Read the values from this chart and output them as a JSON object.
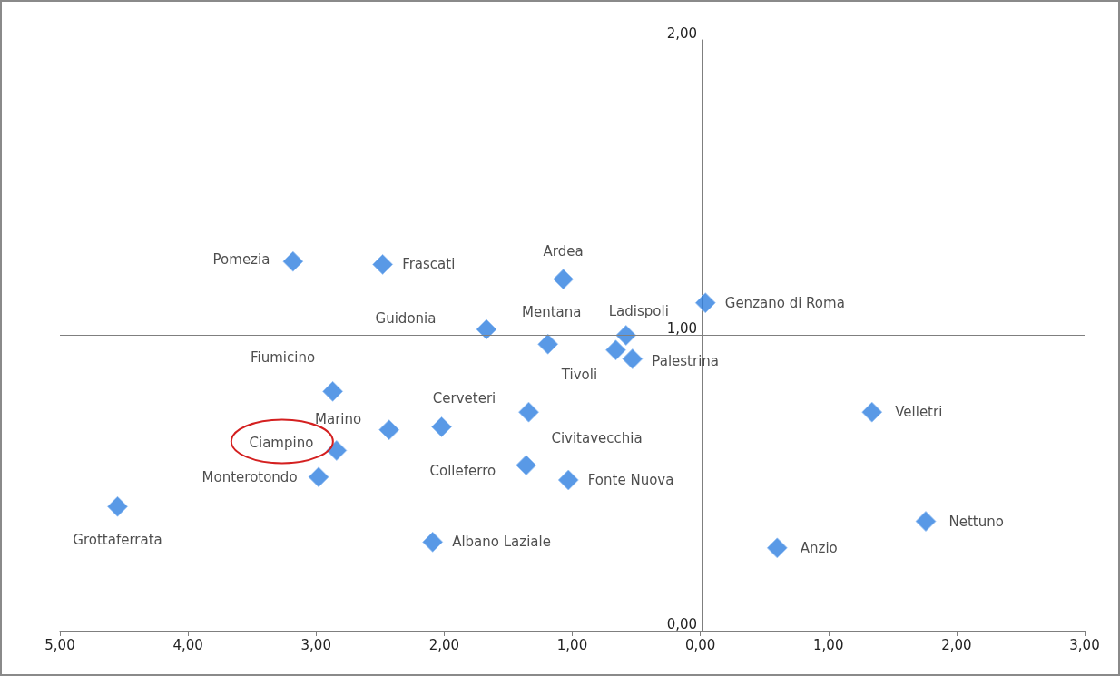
{
  "chart_data": {
    "type": "scatter",
    "marker": "diamond",
    "legend": false,
    "grid": false,
    "xlim": [
      -5,
      3
    ],
    "xticks": [
      {
        "value": -5,
        "label": "5,00"
      },
      {
        "value": -4,
        "label": "4,00"
      },
      {
        "value": -3,
        "label": "3,00"
      },
      {
        "value": -2,
        "label": "2,00"
      },
      {
        "value": -1,
        "label": "1,00"
      },
      {
        "value": 0,
        "label": "0,00"
      },
      {
        "value": 1,
        "label": "1,00"
      },
      {
        "value": 2,
        "label": "2,00"
      },
      {
        "value": 3,
        "label": "3,00"
      }
    ],
    "ylim": [
      0,
      2
    ],
    "yticks": [
      {
        "value": 0,
        "label": "0,00"
      },
      {
        "value": 1,
        "label": "1,00"
      },
      {
        "value": 2,
        "label": "2,00"
      }
    ],
    "ref_lines": [
      {
        "axis": "y",
        "value": 1,
        "color": "#7f7f7f"
      }
    ],
    "series": [
      {
        "name": "Pomezia",
        "color": "#2f7fe0",
        "x": [
          -3.18
        ],
        "values": [
          1.25
        ]
      },
      {
        "name": "Frascati",
        "color": "#2f7fe0",
        "x": [
          -2.48
        ],
        "values": [
          1.24
        ]
      },
      {
        "name": "Ardea",
        "color": "#2f7fe0",
        "x": [
          -1.07
        ],
        "values": [
          1.19
        ]
      },
      {
        "name": "Genzano di Roma",
        "color": "#2f7fe0",
        "x": [
          0.04
        ],
        "values": [
          1.11
        ]
      },
      {
        "name": "Guidonia",
        "color": "#2f7fe0",
        "x": [
          -1.67
        ],
        "values": [
          1.02
        ]
      },
      {
        "name": "Mentana",
        "color": "#2f7fe0",
        "x": [
          -1.19
        ],
        "values": [
          0.97
        ]
      },
      {
        "name": "Ladispoli",
        "color": "#2f7fe0",
        "x": [
          -0.58
        ],
        "values": [
          1.0
        ]
      },
      {
        "name": "Tivoli",
        "color": "#2f7fe0",
        "x": [
          -0.66
        ],
        "values": [
          0.95
        ]
      },
      {
        "name": "Palestrina",
        "color": "#2f7fe0",
        "x": [
          -0.53
        ],
        "values": [
          0.92
        ]
      },
      {
        "name": "Fiumicino",
        "color": "#2f7fe0",
        "x": [
          -2.87
        ],
        "values": [
          0.81
        ]
      },
      {
        "name": "Cerveteri",
        "color": "#2f7fe0",
        "x": [
          -2.02
        ],
        "values": [
          0.69
        ]
      },
      {
        "name": "Marino",
        "color": "#2f7fe0",
        "x": [
          -2.43
        ],
        "values": [
          0.68
        ]
      },
      {
        "name": "Civitavecchia",
        "color": "#2f7fe0",
        "x": [
          -1.34
        ],
        "values": [
          0.74
        ]
      },
      {
        "name": "Velletri",
        "color": "#2f7fe0",
        "x": [
          1.34
        ],
        "values": [
          0.74
        ]
      },
      {
        "name": "Ciampino",
        "color": "#2f7fe0",
        "x": [
          -2.84
        ],
        "values": [
          0.61
        ]
      },
      {
        "name": "Monterotondo",
        "color": "#2f7fe0",
        "x": [
          -2.98
        ],
        "values": [
          0.52
        ]
      },
      {
        "name": "Colleferro",
        "color": "#2f7fe0",
        "x": [
          -1.36
        ],
        "values": [
          0.56
        ]
      },
      {
        "name": "Fonte Nuova",
        "color": "#2f7fe0",
        "x": [
          -1.03
        ],
        "values": [
          0.51
        ]
      },
      {
        "name": "Grottaferrata",
        "color": "#2f7fe0",
        "x": [
          -4.55
        ],
        "values": [
          0.42
        ]
      },
      {
        "name": "Albano Laziale",
        "color": "#2f7fe0",
        "x": [
          -2.09
        ],
        "values": [
          0.3
        ]
      },
      {
        "name": "Anzio",
        "color": "#2f7fe0",
        "x": [
          0.6
        ],
        "values": [
          0.28
        ]
      },
      {
        "name": "Nettuno",
        "color": "#2f7fe0",
        "x": [
          1.76
        ],
        "values": [
          0.37
        ]
      }
    ]
  }
}
